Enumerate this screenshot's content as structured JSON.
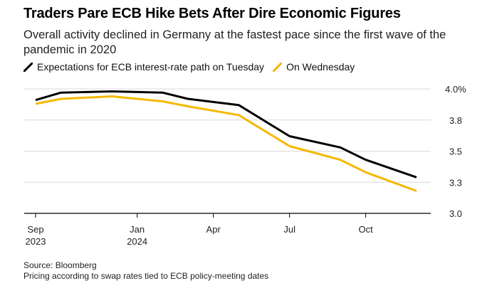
{
  "title": "Traders Pare ECB Hike Bets After Dire Economic Figures",
  "subtitle": "Overall activity declined in Germany at the fastest pace since the first wave of the pandemic in 2020",
  "source": "Source: Bloomberg",
  "note": "Pricing according to swap rates tied to ECB policy-meeting dates",
  "colors": {
    "tuesday": "#000000",
    "wednesday": "#f5b800",
    "grid": "#d9d9d9",
    "axis": "#000000"
  },
  "chart_data": {
    "type": "line",
    "title": "Traders Pare ECB Hike Bets After Dire Economic Figures",
    "xlabel": "",
    "ylabel": "",
    "y_axis_side": "right",
    "ylim": [
      3.0,
      4.0
    ],
    "y_ticks": [
      {
        "value": 4.0,
        "label": "4.0%"
      },
      {
        "value": 3.75,
        "label": "3.8"
      },
      {
        "value": 3.5,
        "label": "3.5"
      },
      {
        "value": 3.25,
        "label": "3.3"
      },
      {
        "value": 3.0,
        "label": "3.0"
      }
    ],
    "x_ticks": [
      {
        "label": "Sep",
        "sublabel": "2023",
        "month_index": 0
      },
      {
        "label": "Jan",
        "sublabel": "2024",
        "month_index": 4
      },
      {
        "label": "Apr",
        "sublabel": "",
        "month_index": 7
      },
      {
        "label": "Jul",
        "sublabel": "",
        "month_index": 10
      },
      {
        "label": "Oct",
        "sublabel": "",
        "month_index": 13
      }
    ],
    "x_range": [
      0,
      15
    ],
    "series": [
      {
        "name": "Expectations for ECB interest-rate path on Tuesday",
        "color": "#000000",
        "x": [
          0,
          1,
          3,
          5,
          6,
          8,
          10,
          12,
          13,
          15
        ],
        "values": [
          3.91,
          3.97,
          3.98,
          3.97,
          3.92,
          3.87,
          3.62,
          3.53,
          3.43,
          3.29
        ]
      },
      {
        "name": "On Wednesday",
        "color": "#f5b800",
        "x": [
          0,
          1,
          3,
          5,
          6,
          8,
          10,
          12,
          13,
          15
        ],
        "values": [
          3.88,
          3.92,
          3.94,
          3.9,
          3.86,
          3.79,
          3.54,
          3.43,
          3.33,
          3.18
        ]
      }
    ]
  }
}
